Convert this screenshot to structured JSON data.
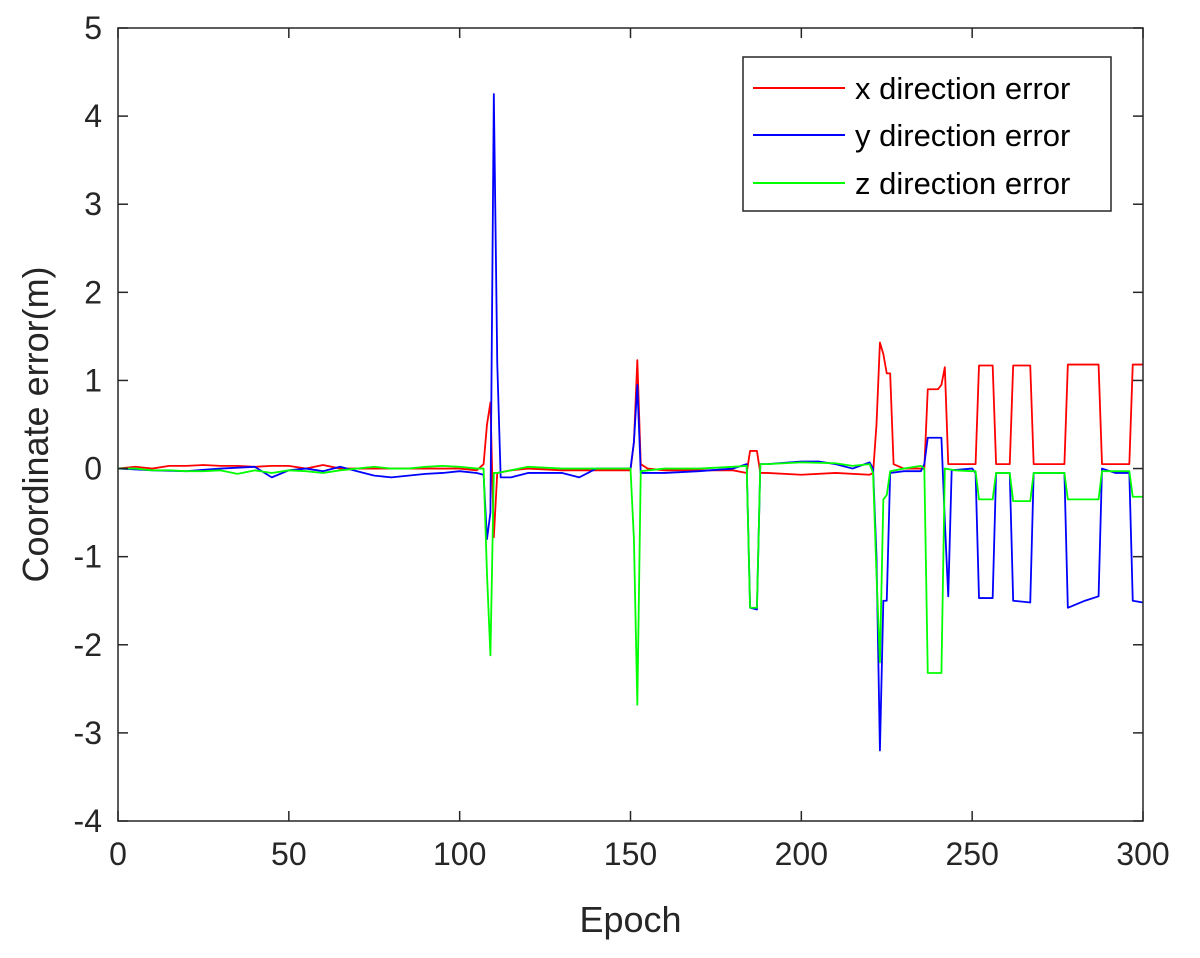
{
  "chart_data": {
    "type": "line",
    "title": "",
    "xlabel": "Epoch",
    "ylabel": "Coordinate error(m)",
    "xlim": [
      0,
      300
    ],
    "ylim": [
      -4,
      5
    ],
    "xticks": [
      0,
      50,
      100,
      150,
      200,
      250,
      300
    ],
    "yticks": [
      -4,
      -3,
      -2,
      -1,
      0,
      1,
      2,
      3,
      4,
      5
    ],
    "xtick_labels": [
      "0",
      "50",
      "100",
      "150",
      "200",
      "250",
      "300"
    ],
    "ytick_labels": [
      "-4",
      "-3",
      "-2",
      "-1",
      "0",
      "1",
      "2",
      "3",
      "4",
      "5"
    ],
    "grid": false,
    "legend_position": "top-right",
    "series": [
      {
        "name": "x direction error",
        "color": "#ff0000",
        "points": [
          [
            0,
            0
          ],
          [
            5,
            0.02
          ],
          [
            10,
            0.0
          ],
          [
            15,
            0.03
          ],
          [
            20,
            0.03
          ],
          [
            25,
            0.04
          ],
          [
            30,
            0.03
          ],
          [
            35,
            0.03
          ],
          [
            40,
            0.02
          ],
          [
            45,
            0.03
          ],
          [
            50,
            0.03
          ],
          [
            55,
            0.0
          ],
          [
            60,
            0.04
          ],
          [
            65,
            0.0
          ],
          [
            70,
            0.0
          ],
          [
            80,
            0.0
          ],
          [
            90,
            0.0
          ],
          [
            100,
            0.0
          ],
          [
            105,
            -0.02
          ],
          [
            107,
            0.05
          ],
          [
            108,
            0.5
          ],
          [
            109,
            0.75
          ],
          [
            110,
            -0.78
          ],
          [
            111,
            -0.05
          ],
          [
            115,
            -0.02
          ],
          [
            120,
            0.0
          ],
          [
            130,
            -0.02
          ],
          [
            140,
            -0.02
          ],
          [
            150,
            -0.02
          ],
          [
            151,
            0.3
          ],
          [
            152,
            1.23
          ],
          [
            153,
            0.05
          ],
          [
            155,
            0.0
          ],
          [
            160,
            -0.02
          ],
          [
            170,
            -0.02
          ],
          [
            180,
            -0.02
          ],
          [
            184,
            -0.05
          ],
          [
            185,
            0.2
          ],
          [
            187,
            0.2
          ],
          [
            188,
            -0.05
          ],
          [
            190,
            -0.05
          ],
          [
            200,
            -0.07
          ],
          [
            210,
            -0.05
          ],
          [
            220,
            -0.07
          ],
          [
            221,
            -0.05
          ],
          [
            222,
            0.5
          ],
          [
            223,
            1.43
          ],
          [
            224,
            1.3
          ],
          [
            225,
            1.08
          ],
          [
            226,
            1.08
          ],
          [
            227,
            0.05
          ],
          [
            230,
            0.0
          ],
          [
            235,
            0.0
          ],
          [
            236,
            0.0
          ],
          [
            237,
            0.9
          ],
          [
            240,
            0.9
          ],
          [
            241,
            0.95
          ],
          [
            242,
            1.15
          ],
          [
            243,
            0.05
          ],
          [
            245,
            0.05
          ],
          [
            250,
            0.05
          ],
          [
            251,
            0.05
          ],
          [
            252,
            1.17
          ],
          [
            256,
            1.17
          ],
          [
            257,
            0.05
          ],
          [
            260,
            0.05
          ],
          [
            261,
            0.05
          ],
          [
            262,
            1.17
          ],
          [
            267,
            1.17
          ],
          [
            268,
            0.05
          ],
          [
            272,
            0.05
          ],
          [
            277,
            0.05
          ],
          [
            278,
            1.18
          ],
          [
            287,
            1.18
          ],
          [
            288,
            0.05
          ],
          [
            292,
            0.05
          ],
          [
            296,
            0.05
          ],
          [
            297,
            1.18
          ],
          [
            300,
            1.18
          ]
        ]
      },
      {
        "name": "y direction error",
        "color": "#0000ff",
        "points": [
          [
            0,
            0
          ],
          [
            10,
            -0.02
          ],
          [
            20,
            -0.03
          ],
          [
            30,
            0.0
          ],
          [
            40,
            0.02
          ],
          [
            45,
            -0.1
          ],
          [
            50,
            -0.02
          ],
          [
            55,
            0.0
          ],
          [
            60,
            -0.03
          ],
          [
            65,
            0.02
          ],
          [
            70,
            -0.03
          ],
          [
            75,
            -0.08
          ],
          [
            80,
            -0.1
          ],
          [
            85,
            -0.08
          ],
          [
            90,
            -0.06
          ],
          [
            95,
            -0.05
          ],
          [
            100,
            -0.03
          ],
          [
            105,
            -0.05
          ],
          [
            107,
            -0.07
          ],
          [
            108,
            -0.8
          ],
          [
            109,
            -0.5
          ],
          [
            110,
            4.25
          ],
          [
            111,
            1.2
          ],
          [
            112,
            -0.1
          ],
          [
            115,
            -0.1
          ],
          [
            120,
            -0.05
          ],
          [
            125,
            -0.05
          ],
          [
            130,
            -0.05
          ],
          [
            135,
            -0.1
          ],
          [
            140,
            0.0
          ],
          [
            145,
            0.0
          ],
          [
            150,
            0.0
          ],
          [
            151,
            0.3
          ],
          [
            152,
            0.95
          ],
          [
            153,
            -0.05
          ],
          [
            160,
            -0.05
          ],
          [
            170,
            -0.03
          ],
          [
            180,
            0.0
          ],
          [
            184,
            0.05
          ],
          [
            185,
            -1.58
          ],
          [
            187,
            -1.6
          ],
          [
            188,
            0.05
          ],
          [
            190,
            0.05
          ],
          [
            200,
            0.08
          ],
          [
            205,
            0.08
          ],
          [
            210,
            0.05
          ],
          [
            215,
            0.0
          ],
          [
            220,
            0.07
          ],
          [
            221,
            0.0
          ],
          [
            222,
            -1.0
          ],
          [
            223,
            -3.2
          ],
          [
            224,
            -1.5
          ],
          [
            225,
            -1.5
          ],
          [
            226,
            -0.05
          ],
          [
            230,
            -0.03
          ],
          [
            235,
            -0.03
          ],
          [
            236,
            0.05
          ],
          [
            237,
            0.35
          ],
          [
            241,
            0.35
          ],
          [
            242,
            -0.6
          ],
          [
            243,
            -1.45
          ],
          [
            244,
            -0.02
          ],
          [
            250,
            0.0
          ],
          [
            251,
            -0.05
          ],
          [
            252,
            -1.47
          ],
          [
            256,
            -1.47
          ],
          [
            257,
            -0.05
          ],
          [
            260,
            -0.05
          ],
          [
            261,
            -0.05
          ],
          [
            262,
            -1.5
          ],
          [
            267,
            -1.52
          ],
          [
            268,
            -0.05
          ],
          [
            272,
            -0.05
          ],
          [
            277,
            -0.05
          ],
          [
            278,
            -1.58
          ],
          [
            283,
            -1.5
          ],
          [
            287,
            -1.45
          ],
          [
            288,
            0.0
          ],
          [
            292,
            -0.05
          ],
          [
            296,
            -0.05
          ],
          [
            297,
            -1.5
          ],
          [
            300,
            -1.52
          ]
        ]
      },
      {
        "name": "z direction error",
        "color": "#00ff00",
        "points": [
          [
            0,
            0
          ],
          [
            5,
            0.0
          ],
          [
            10,
            -0.02
          ],
          [
            15,
            -0.02
          ],
          [
            20,
            -0.03
          ],
          [
            25,
            -0.03
          ],
          [
            30,
            -0.02
          ],
          [
            35,
            -0.06
          ],
          [
            40,
            -0.02
          ],
          [
            45,
            -0.05
          ],
          [
            50,
            -0.02
          ],
          [
            55,
            -0.03
          ],
          [
            60,
            -0.05
          ],
          [
            65,
            -0.02
          ],
          [
            70,
            0.0
          ],
          [
            75,
            0.02
          ],
          [
            80,
            0.0
          ],
          [
            85,
            0.0
          ],
          [
            90,
            0.02
          ],
          [
            95,
            0.03
          ],
          [
            100,
            0.02
          ],
          [
            105,
            0.0
          ],
          [
            107,
            0.0
          ],
          [
            108,
            -1.2
          ],
          [
            109,
            -2.12
          ],
          [
            110,
            -0.05
          ],
          [
            111,
            -0.05
          ],
          [
            115,
            -0.02
          ],
          [
            120,
            0.02
          ],
          [
            130,
            0.0
          ],
          [
            140,
            0.0
          ],
          [
            150,
            0.0
          ],
          [
            151,
            -0.8
          ],
          [
            152,
            -2.68
          ],
          [
            153,
            -0.03
          ],
          [
            160,
            0.0
          ],
          [
            170,
            0.0
          ],
          [
            180,
            0.02
          ],
          [
            184,
            0.03
          ],
          [
            185,
            -1.58
          ],
          [
            187,
            -1.58
          ],
          [
            188,
            0.05
          ],
          [
            190,
            0.05
          ],
          [
            200,
            0.07
          ],
          [
            210,
            0.06
          ],
          [
            215,
            0.03
          ],
          [
            220,
            0.05
          ],
          [
            221,
            -0.05
          ],
          [
            222,
            -1.2
          ],
          [
            223,
            -2.2
          ],
          [
            224,
            -0.35
          ],
          [
            225,
            -0.3
          ],
          [
            226,
            -0.03
          ],
          [
            230,
            0.0
          ],
          [
            235,
            0.03
          ],
          [
            236,
            0.0
          ],
          [
            237,
            -2.32
          ],
          [
            241,
            -2.32
          ],
          [
            242,
            0.0
          ],
          [
            245,
            -0.02
          ],
          [
            250,
            -0.03
          ],
          [
            251,
            -0.03
          ],
          [
            252,
            -0.35
          ],
          [
            256,
            -0.35
          ],
          [
            257,
            -0.05
          ],
          [
            260,
            -0.05
          ],
          [
            261,
            -0.05
          ],
          [
            262,
            -0.37
          ],
          [
            267,
            -0.37
          ],
          [
            268,
            -0.05
          ],
          [
            272,
            -0.05
          ],
          [
            277,
            -0.05
          ],
          [
            278,
            -0.35
          ],
          [
            287,
            -0.35
          ],
          [
            288,
            -0.03
          ],
          [
            292,
            -0.03
          ],
          [
            296,
            -0.03
          ],
          [
            297,
            -0.32
          ],
          [
            300,
            -0.32
          ]
        ]
      }
    ]
  }
}
